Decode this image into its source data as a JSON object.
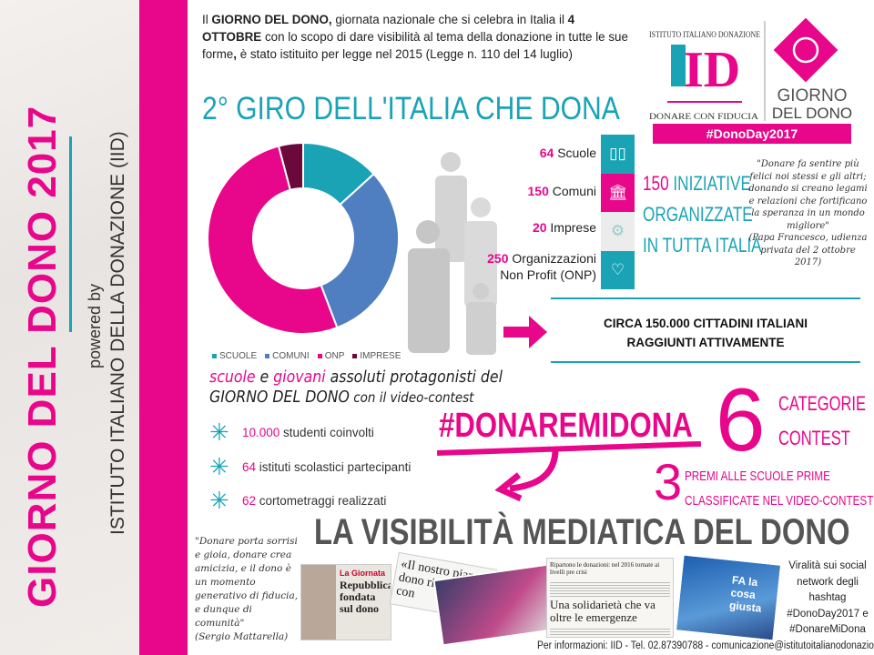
{
  "sidebar": {
    "title": "GIORNO DEL DONO 2017",
    "powered_by": "powered by",
    "organization": "ISTITUTO ITALIANO DELLA DONAZIONE (IID)"
  },
  "intro": {
    "p1": "Il ",
    "b1": "GIORNO DEL DONO,",
    "p2": " giornata nazionale che si celebra in Italia il ",
    "b2": "4 OTTOBRE",
    "p3": " con lo scopo di dare visibilità al tema della donazione in tutte le sue forme",
    "b3": ",",
    "p4": " è stato istituito per legge nel 2015 (Legge n. 110 del 14 luglio)"
  },
  "logo": {
    "arc_text": "ISTITUTO ITALIANO DONAZIONE",
    "monogram": "ID",
    "tagline": "DONARE CON FIDUCIA",
    "brand_line1": "GIORNO",
    "brand_line2": "DEL DONO",
    "hashtag": "#DonoDay2017"
  },
  "giro_title": "2° GIRO DELL'ITALIA CHE DONA",
  "chart_data": {
    "type": "pie",
    "variant": "donut",
    "categories": [
      "SCUOLE",
      "COMUNI",
      "ONP",
      "IMPRESE"
    ],
    "values": [
      64,
      150,
      250,
      20
    ],
    "colors": [
      "#1aa3b5",
      "#4f7fc0",
      "#e8068a",
      "#6b0a3a"
    ],
    "legend": "bottom"
  },
  "stats": [
    {
      "num": "64",
      "label": "Scuole",
      "icon": "book-icon",
      "badge": "SCUOLE",
      "color": "#1aa3b5"
    },
    {
      "num": "150",
      "label": "Comuni",
      "icon": "town-hall-icon",
      "badge": "COMUNI",
      "color": "#e8068a"
    },
    {
      "num": "20",
      "label": "Imprese",
      "icon": "gears-icon",
      "badge": "IMPRESE",
      "color": "#e8e8e8"
    },
    {
      "num": "250",
      "label": "Organizzazioni",
      "label2": "Non Profit (ONP)",
      "icon": "heart-icon",
      "badge": "NON PROFIT",
      "color": "#1aa3b5"
    }
  ],
  "iniziative": {
    "num": "150",
    "l1": " INIZIATIVE",
    "l2": "ORGANIZZATE",
    "l3": "IN TUTTA ITALIA"
  },
  "papa_quote": {
    "text": "\"Donare fa sentire più felici noi stessi e gli altri; donando si creano legami e relazioni che fortificano la speranza in un mondo migliore\"",
    "source": "(Papa Francesco, udienza privata del 2 ottobre 2017)"
  },
  "reach": {
    "l1": "CIRCA 150.000 CITTADINI ITALIANI",
    "l2": "RAGGIUNTI ATTIVAMENTE"
  },
  "contest": {
    "w1": "scuole",
    "w2": " e ",
    "w3": "giovani",
    "w4": " assoluti protagonisti del",
    "l2a": "GIORNO DEL DONO",
    "l2b": " con il video-contest"
  },
  "bullets": [
    {
      "num": "10.000",
      "text": " studenti coinvolti"
    },
    {
      "num": "64",
      "text": " istituti scolastici partecipanti"
    },
    {
      "num": "62",
      "text": " cortometraggi realizzati"
    }
  ],
  "hashtag": "#DONAREMIDONA",
  "categories": {
    "num": "6",
    "l1": "CATEGORIE",
    "l2": "CONTEST"
  },
  "prizes": {
    "num": "3",
    "l1": "PREMI ALLE SCUOLE PRIME",
    "l2": "CLASSIFICATE NEL VIDEO-CONTEST"
  },
  "media_title": "LA VISIBILITÀ MEDIATICA DEL DONO",
  "mattarella_quote": {
    "text": "\"Donare porta sorrisi e gioia, donare crea amicizia, e il dono è un momento generativo di fiducia, e dunque di comunità\"",
    "source": "(Sergio Mattarella)"
  },
  "clippings": {
    "c1_kicker": "La Giornata",
    "c1_head": "Repubblica fondata sul dono",
    "c2_head": "«Il nostro pianeta dono ricevuto da con",
    "c3_kicker": "Ripartono le donazioni: nel 2016 tornate ai livelli pre crisi",
    "c4_head": "Una solidarietà che va oltre le emergenze",
    "c5_head": "FA la cosa giusta"
  },
  "viral": "Viralità sui social network degli hashtag #DonoDay2017 e #DonareMiDona",
  "footer": "Per informazioni: IID - Tel. 02.87390788 - comunicazione@istitutoitalianodonazione.it"
}
